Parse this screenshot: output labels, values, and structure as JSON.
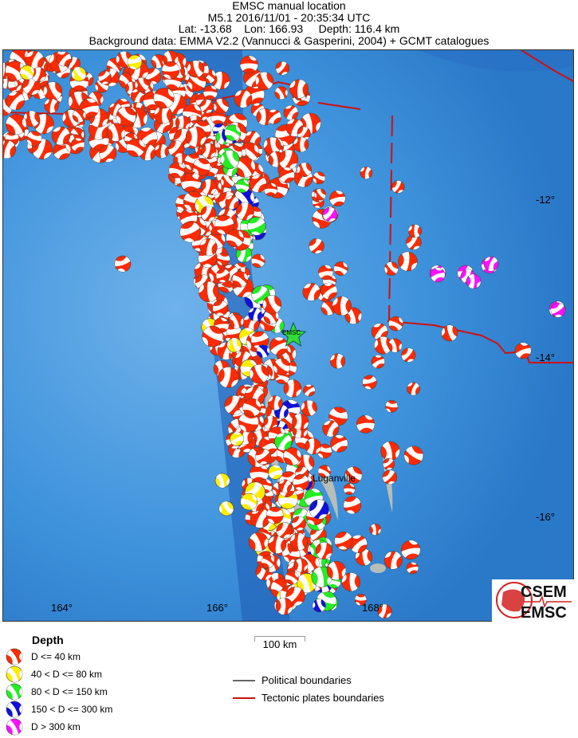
{
  "header": {
    "title": "EMSC manual location",
    "line2": "M5.1  2016/11/01 - 20:35:34 UTC",
    "line3": "Lat: -13.68    Lon: 166.93     Depth: 116.4 km",
    "line4": "Background data: EMMA V2.2 (Vannucci & Gasperini, 2004) + GCMT catalogues"
  },
  "map": {
    "lat_ticks": [
      "-12°",
      "-14°",
      "-16°"
    ],
    "lon_ticks": [
      "164°",
      "166°",
      "168°"
    ],
    "epicenter_label": "EMSC",
    "place_label": "Luganville",
    "epicenter": {
      "lat": -13.68,
      "lon": 166.93,
      "depth_km": 116.4,
      "magnitude": 5.1
    },
    "colors": {
      "ocean": "#3a8fd6",
      "land": "#b8bdb8",
      "tectonic": "#d01010",
      "epicenter_star": "#33dd33"
    }
  },
  "legend": {
    "title": "Depth",
    "items": [
      {
        "label": "D <= 40 km",
        "color": "#ff2a00"
      },
      {
        "label": "40 < D <= 80 km",
        "color": "#ffee00"
      },
      {
        "label": "80 < D <= 150 km",
        "color": "#22ee22"
      },
      {
        "label": "150 < D <= 300 km",
        "color": "#1010dd"
      },
      {
        "label": "D > 300 km",
        "color": "#ff10ff"
      }
    ],
    "scale_label": "100 km",
    "lines": [
      {
        "label": "Political boundaries",
        "color": "#666666"
      },
      {
        "label": "Tectonic plates boundaries",
        "color": "#cc1111"
      }
    ]
  },
  "logo": {
    "text_top": "CSEM",
    "text_bottom": "EMSC"
  }
}
